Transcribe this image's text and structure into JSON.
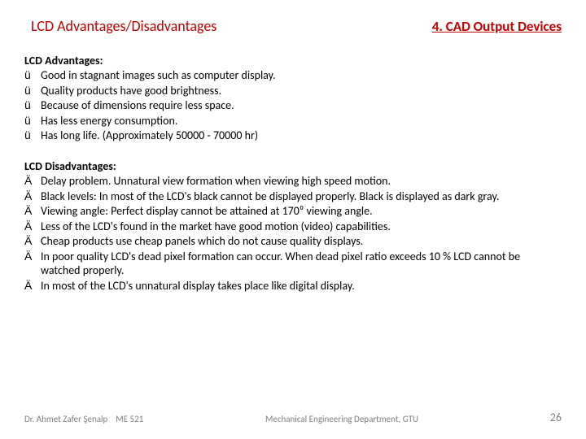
{
  "header": {
    "title": "LCD Advantages/Disadvantages",
    "chapter": "4. CAD Output Devices"
  },
  "advantages": {
    "heading": "LCD  Advantages:",
    "items": [
      "Good in stagnant images such as computer display.",
      "Quality products have good brightness.",
      "Because of dimensions require less space.",
      "Has less energy consumption.",
      "Has long life. (Approximately  50000 - 70000 hr)"
    ]
  },
  "disadvantages": {
    "heading": "LCD  Disadvantages:",
    "items": [
      "Delay problem. Unnatural view formation when viewing high speed motion.",
      "Black levels: In most of the LCD's black cannot be displayed properly. Black is displayed as dark gray.",
      "Viewing angle: Perfect display cannot be attained at 170⁰  viewing angle.",
      "Less of the LCD's found in the market have good motion (video) capabilities.",
      "Cheap products use cheap panels which do not cause quality displays.",
      "In poor quality  LCD's dead pixel formation can occur. When dead pixel ratio exceeds 10 % LCD cannot be watched properly.",
      "In most of the LCD's unnatural display takes place like digital display."
    ]
  },
  "footer": {
    "author": "Dr. Ahmet Zafer Şenalp",
    "course": "ME 521",
    "dept": "Mechanical Engineering Department, GTU",
    "page": "26"
  },
  "bullets": {
    "check": "ü",
    "thumbsdown": "Ä"
  }
}
